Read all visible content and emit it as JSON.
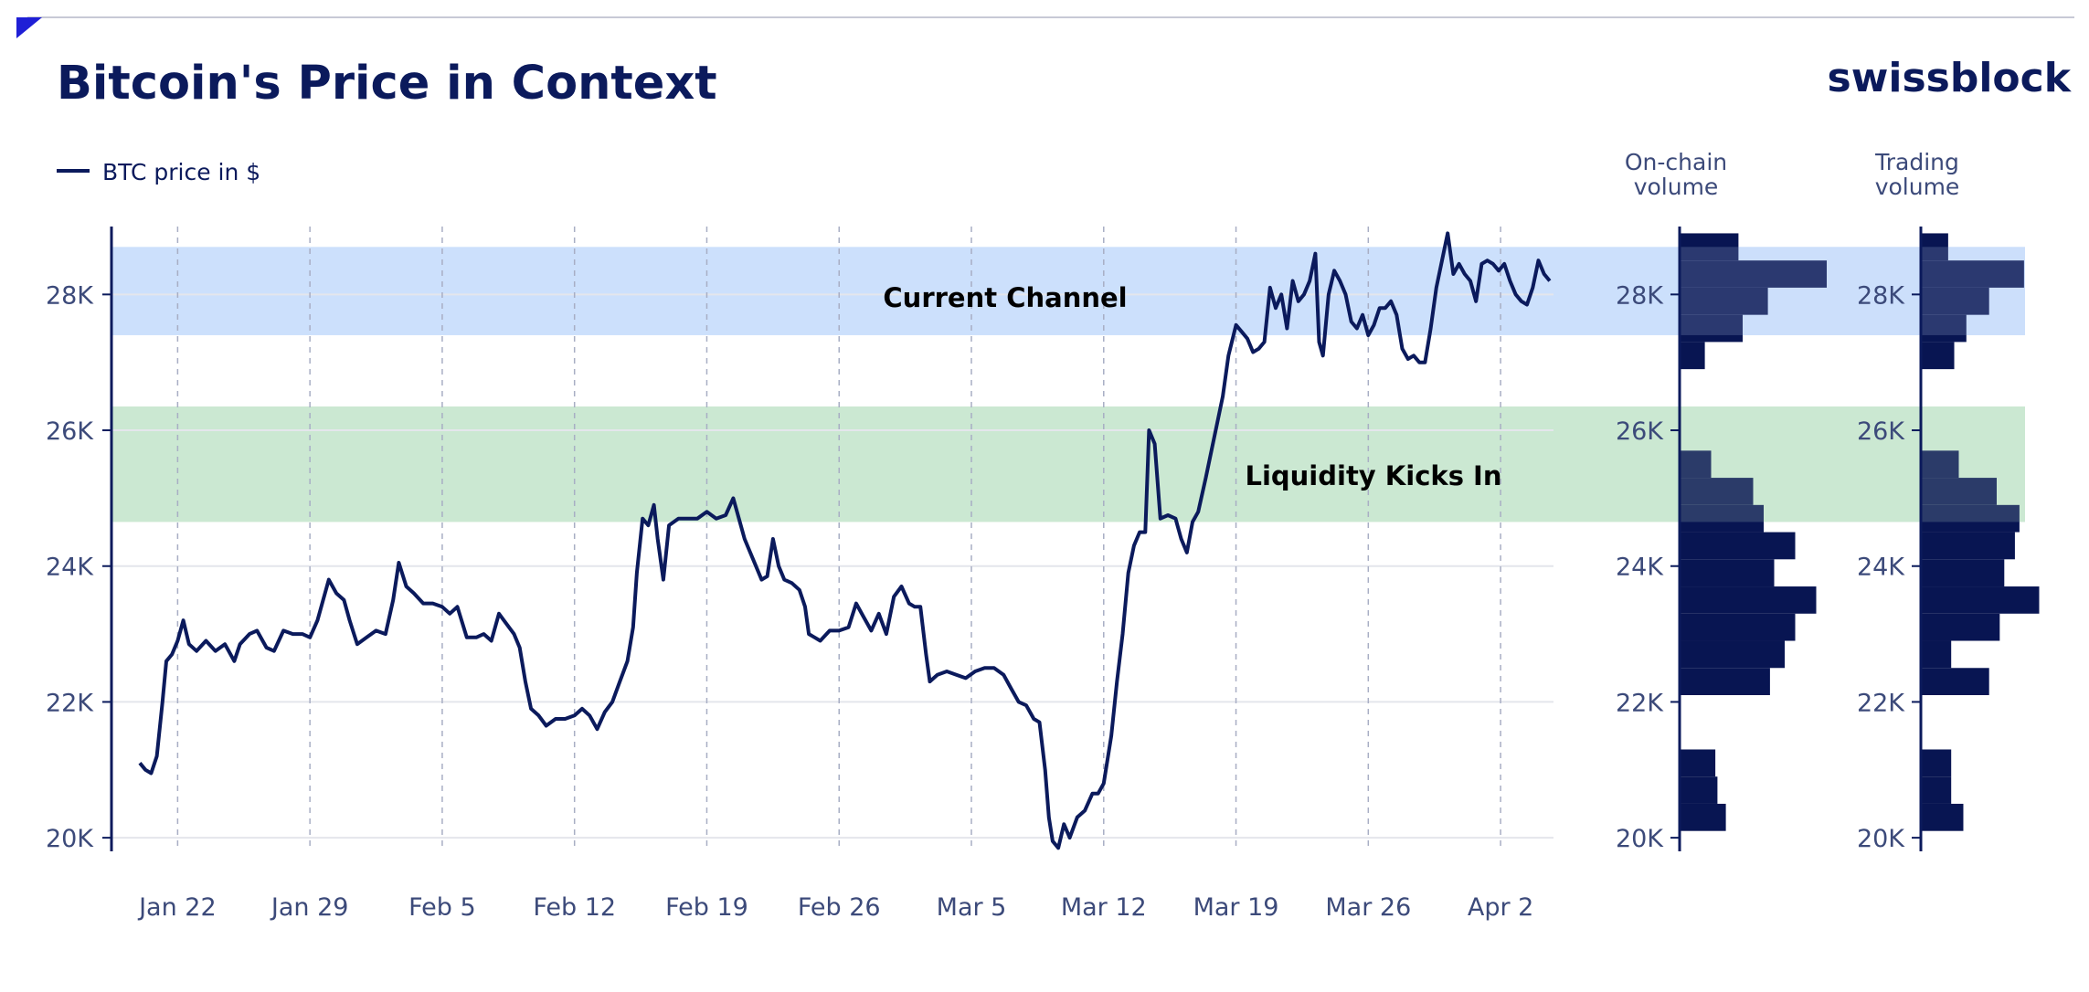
{
  "page": {
    "title": "Bitcoin's Price in Context",
    "logo": "swissblock",
    "legend_label": "BTC price in $"
  },
  "colors": {
    "price_line": "#0b1a5c",
    "bars": "#081552",
    "current_channel_band": "#cce0fc",
    "liquidity_band": "#cbe8d2",
    "grid": "#e4e6ec",
    "axis": "#0b1a5c",
    "corner_accent": "#1f1fd6"
  },
  "chart_data": [
    {
      "type": "line",
      "series": [
        {
          "name": "BTC price in $"
        }
      ],
      "yaxis": {
        "ylim": [
          19800,
          29000
        ],
        "ticks": [
          20000,
          22000,
          24000,
          26000,
          28000
        ],
        "tick_labels": [
          "20K",
          "22K",
          "24K",
          "26K",
          "28K"
        ]
      },
      "xaxis": {
        "tick_labels": [
          "Jan 22",
          "Jan 29",
          "Feb 5",
          "Feb 12",
          "Feb 19",
          "Feb 26",
          "Mar 5",
          "Mar 12",
          "Mar 19",
          "Mar 26",
          "Apr 2"
        ],
        "tick_days": [
          21,
          28,
          35,
          42,
          49,
          56,
          63,
          70,
          77,
          84,
          91
        ],
        "xlim": [
          17.5,
          93.8
        ]
      },
      "bands": [
        {
          "label": "Current Channel",
          "y_range": [
            27400,
            28700
          ]
        },
        {
          "label": "Liquidity Kicks In",
          "y_range": [
            24650,
            26350
          ]
        }
      ],
      "points": [
        [
          19.0,
          21100
        ],
        [
          19.3,
          21000
        ],
        [
          19.6,
          20950
        ],
        [
          19.9,
          21200
        ],
        [
          20.2,
          22000
        ],
        [
          20.4,
          22600
        ],
        [
          20.7,
          22700
        ],
        [
          21.0,
          22900
        ],
        [
          21.3,
          23200
        ],
        [
          21.6,
          22850
        ],
        [
          22.0,
          22750
        ],
        [
          22.5,
          22900
        ],
        [
          23.0,
          22750
        ],
        [
          23.5,
          22850
        ],
        [
          24.0,
          22600
        ],
        [
          24.3,
          22850
        ],
        [
          24.8,
          23000
        ],
        [
          25.2,
          23050
        ],
        [
          25.7,
          22800
        ],
        [
          26.1,
          22750
        ],
        [
          26.6,
          23050
        ],
        [
          27.1,
          23000
        ],
        [
          27.6,
          23000
        ],
        [
          28.0,
          22950
        ],
        [
          28.4,
          23200
        ],
        [
          28.7,
          23500
        ],
        [
          29.0,
          23800
        ],
        [
          29.4,
          23600
        ],
        [
          29.8,
          23500
        ],
        [
          30.1,
          23200
        ],
        [
          30.5,
          22850
        ],
        [
          31.0,
          22950
        ],
        [
          31.5,
          23050
        ],
        [
          32.0,
          23000
        ],
        [
          32.4,
          23500
        ],
        [
          32.7,
          24050
        ],
        [
          33.1,
          23700
        ],
        [
          33.5,
          23600
        ],
        [
          34.0,
          23450
        ],
        [
          34.5,
          23450
        ],
        [
          35.0,
          23400
        ],
        [
          35.4,
          23300
        ],
        [
          35.8,
          23400
        ],
        [
          36.3,
          22950
        ],
        [
          36.8,
          22950
        ],
        [
          37.2,
          23000
        ],
        [
          37.6,
          22900
        ],
        [
          38.0,
          23300
        ],
        [
          38.4,
          23150
        ],
        [
          38.8,
          23000
        ],
        [
          39.1,
          22800
        ],
        [
          39.4,
          22300
        ],
        [
          39.7,
          21900
        ],
        [
          40.1,
          21800
        ],
        [
          40.5,
          21650
        ],
        [
          41.0,
          21750
        ],
        [
          41.5,
          21750
        ],
        [
          42.0,
          21800
        ],
        [
          42.4,
          21900
        ],
        [
          42.8,
          21800
        ],
        [
          43.2,
          21600
        ],
        [
          43.6,
          21850
        ],
        [
          44.0,
          22000
        ],
        [
          44.4,
          22300
        ],
        [
          44.8,
          22600
        ],
        [
          45.1,
          23100
        ],
        [
          45.3,
          23900
        ],
        [
          45.6,
          24700
        ],
        [
          45.9,
          24600
        ],
        [
          46.2,
          24900
        ],
        [
          46.4,
          24400
        ],
        [
          46.7,
          23800
        ],
        [
          47.0,
          24600
        ],
        [
          47.5,
          24700
        ],
        [
          48.0,
          24700
        ],
        [
          48.5,
          24700
        ],
        [
          49.0,
          24800
        ],
        [
          49.5,
          24700
        ],
        [
          50.0,
          24750
        ],
        [
          50.4,
          25000
        ],
        [
          50.7,
          24700
        ],
        [
          51.0,
          24400
        ],
        [
          51.3,
          24200
        ],
        [
          51.6,
          24000
        ],
        [
          51.9,
          23800
        ],
        [
          52.2,
          23850
        ],
        [
          52.5,
          24400
        ],
        [
          52.8,
          24000
        ],
        [
          53.1,
          23800
        ],
        [
          53.5,
          23750
        ],
        [
          53.9,
          23650
        ],
        [
          54.2,
          23400
        ],
        [
          54.4,
          23000
        ],
        [
          54.7,
          22950
        ],
        [
          55.0,
          22900
        ],
        [
          55.5,
          23050
        ],
        [
          56.0,
          23050
        ],
        [
          56.5,
          23100
        ],
        [
          56.9,
          23450
        ],
        [
          57.3,
          23250
        ],
        [
          57.7,
          23050
        ],
        [
          58.1,
          23300
        ],
        [
          58.5,
          23000
        ],
        [
          58.9,
          23550
        ],
        [
          59.3,
          23700
        ],
        [
          59.7,
          23450
        ],
        [
          60.0,
          23400
        ],
        [
          60.3,
          23400
        ],
        [
          60.6,
          22700
        ],
        [
          60.8,
          22300
        ],
        [
          61.2,
          22400
        ],
        [
          61.7,
          22450
        ],
        [
          62.2,
          22400
        ],
        [
          62.7,
          22350
        ],
        [
          63.2,
          22450
        ],
        [
          63.7,
          22500
        ],
        [
          64.2,
          22500
        ],
        [
          64.7,
          22400
        ],
        [
          65.1,
          22200
        ],
        [
          65.5,
          22000
        ],
        [
          65.9,
          21950
        ],
        [
          66.3,
          21750
        ],
        [
          66.6,
          21700
        ],
        [
          66.9,
          21000
        ],
        [
          67.1,
          20300
        ],
        [
          67.3,
          19950
        ],
        [
          67.6,
          19850
        ],
        [
          67.9,
          20200
        ],
        [
          68.2,
          20000
        ],
        [
          68.6,
          20300
        ],
        [
          69.0,
          20400
        ],
        [
          69.4,
          20650
        ],
        [
          69.7,
          20650
        ],
        [
          70.0,
          20800
        ],
        [
          70.4,
          21500
        ],
        [
          70.7,
          22300
        ],
        [
          71.0,
          23000
        ],
        [
          71.3,
          23900
        ],
        [
          71.6,
          24300
        ],
        [
          71.9,
          24500
        ],
        [
          72.2,
          24500
        ],
        [
          72.4,
          26000
        ],
        [
          72.7,
          25800
        ],
        [
          73.0,
          24700
        ],
        [
          73.4,
          24750
        ],
        [
          73.8,
          24700
        ],
        [
          74.1,
          24400
        ],
        [
          74.4,
          24200
        ],
        [
          74.7,
          24650
        ],
        [
          75.0,
          24800
        ],
        [
          75.4,
          25300
        ],
        [
          75.7,
          25700
        ],
        [
          76.0,
          26100
        ],
        [
          76.3,
          26500
        ],
        [
          76.6,
          27100
        ],
        [
          77.0,
          27550
        ],
        [
          77.3,
          27450
        ],
        [
          77.6,
          27350
        ],
        [
          77.9,
          27150
        ],
        [
          78.2,
          27200
        ],
        [
          78.5,
          27300
        ],
        [
          78.8,
          28100
        ],
        [
          79.1,
          27800
        ],
        [
          79.4,
          28000
        ],
        [
          79.7,
          27500
        ],
        [
          80.0,
          28200
        ],
        [
          80.3,
          27900
        ],
        [
          80.6,
          28000
        ],
        [
          80.9,
          28200
        ],
        [
          81.2,
          28600
        ],
        [
          81.4,
          27300
        ],
        [
          81.6,
          27100
        ],
        [
          81.9,
          28000
        ],
        [
          82.2,
          28350
        ],
        [
          82.5,
          28200
        ],
        [
          82.8,
          28000
        ],
        [
          83.1,
          27600
        ],
        [
          83.4,
          27500
        ],
        [
          83.7,
          27700
        ],
        [
          84.0,
          27400
        ],
        [
          84.3,
          27550
        ],
        [
          84.6,
          27800
        ],
        [
          84.9,
          27800
        ],
        [
          85.2,
          27900
        ],
        [
          85.5,
          27700
        ],
        [
          85.8,
          27200
        ],
        [
          86.1,
          27050
        ],
        [
          86.4,
          27100
        ],
        [
          86.7,
          27000
        ],
        [
          87.0,
          27000
        ],
        [
          87.3,
          27500
        ],
        [
          87.6,
          28100
        ],
        [
          87.9,
          28500
        ],
        [
          88.2,
          28900
        ],
        [
          88.5,
          28300
        ],
        [
          88.8,
          28450
        ],
        [
          89.1,
          28300
        ],
        [
          89.4,
          28200
        ],
        [
          89.7,
          27900
        ],
        [
          90.0,
          28450
        ],
        [
          90.3,
          28500
        ],
        [
          90.6,
          28450
        ],
        [
          90.9,
          28350
        ],
        [
          91.2,
          28450
        ],
        [
          91.5,
          28200
        ],
        [
          91.8,
          28000
        ],
        [
          92.1,
          27900
        ],
        [
          92.4,
          27850
        ],
        [
          92.7,
          28100
        ],
        [
          93.0,
          28500
        ],
        [
          93.3,
          28300
        ],
        [
          93.6,
          28200
        ]
      ]
    },
    {
      "type": "bar",
      "title": "On-chain\nvolume",
      "orientation": "horizontal",
      "yaxis": {
        "ylim": [
          19800,
          29000
        ],
        "tick_labels": [
          "20K",
          "22K",
          "24K",
          "26K",
          "28K"
        ]
      },
      "bins_start": [
        20100,
        20500,
        20900,
        21300,
        21700,
        22100,
        22500,
        22900,
        23300,
        23700,
        24100,
        24500,
        24900,
        25300,
        25700,
        26100,
        26500,
        26900,
        27300,
        27700,
        28100,
        28500
      ],
      "bin_width": 400,
      "values": [
        0.22,
        0.18,
        0.17,
        0,
        0,
        0.43,
        0.5,
        0.55,
        0.65,
        0.45,
        0.55,
        0.4,
        0.35,
        0.15,
        0,
        0,
        0,
        0.12,
        0.3,
        0.42,
        0.7,
        0.28
      ]
    },
    {
      "type": "bar",
      "title": "Trading\nvolume",
      "orientation": "horizontal",
      "yaxis": {
        "ylim": [
          19800,
          29000
        ],
        "tick_labels": [
          "20K",
          "22K",
          "24K",
          "26K",
          "28K"
        ]
      },
      "bins_start": [
        20100,
        20500,
        20900,
        21300,
        21700,
        22100,
        22500,
        22900,
        23300,
        23700,
        24100,
        24500,
        24900,
        25300,
        25700,
        26100,
        26500,
        26900,
        27300,
        27700,
        28100,
        28500
      ],
      "bin_width": 400,
      "values": [
        0.28,
        0.2,
        0.2,
        0,
        0,
        0.45,
        0.2,
        0.52,
        0.78,
        0.55,
        0.62,
        0.65,
        0.5,
        0.25,
        0,
        0,
        0,
        0.22,
        0.3,
        0.45,
        0.68,
        0.18
      ]
    }
  ]
}
